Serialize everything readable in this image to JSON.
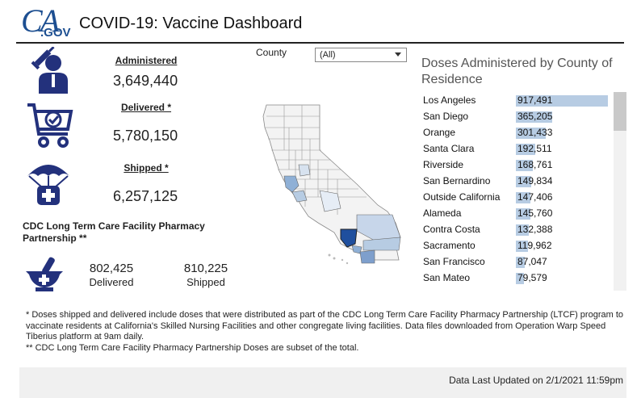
{
  "header": {
    "logo_main": "CA",
    "logo_sub": ".GOV",
    "title": "COVID-19: Vaccine Dashboard"
  },
  "metrics": {
    "administered": {
      "label": "Administered",
      "value": "3,649,440",
      "icon": "person-syringe-icon"
    },
    "delivered": {
      "label": "Delivered *",
      "value": "5,780,150",
      "icon": "cart-check-icon"
    },
    "shipped": {
      "label": "Shipped *",
      "value": "6,257,125",
      "icon": "parachute-medical-icon"
    }
  },
  "ltc": {
    "title": "CDC Long Term Care Facility Pharmacy Partnership **",
    "icon": "mortar-pestle-icon",
    "delivered_value": "802,425",
    "delivered_label": "Delivered",
    "shipped_value": "810,225",
    "shipped_label": "Shipped"
  },
  "filter": {
    "label": "County",
    "selected": "(All)"
  },
  "doses": {
    "title": "Doses Administered by County of Residence",
    "max_value": 917491,
    "rows": [
      {
        "county": "Los Angeles",
        "value": "917,491",
        "n": 917491
      },
      {
        "county": "San Diego",
        "value": "365,205",
        "n": 365205
      },
      {
        "county": "Orange",
        "value": "301,433",
        "n": 301433
      },
      {
        "county": "Santa Clara",
        "value": "192,511",
        "n": 192511
      },
      {
        "county": "Riverside",
        "value": "168,761",
        "n": 168761
      },
      {
        "county": "San Bernardino",
        "value": "149,834",
        "n": 149834
      },
      {
        "county": "Outside California",
        "value": "147,406",
        "n": 147406
      },
      {
        "county": "Alameda",
        "value": "145,760",
        "n": 145760
      },
      {
        "county": "Contra Costa",
        "value": "132,388",
        "n": 132388
      },
      {
        "county": "Sacramento",
        "value": "119,962",
        "n": 119962
      },
      {
        "county": "San Francisco",
        "value": "87,047",
        "n": 87047
      },
      {
        "county": "San Mateo",
        "value": "79,579",
        "n": 79579
      }
    ]
  },
  "notes": {
    "line1": "* Doses shipped and delivered include doses that were distributed as part of the CDC Long Term Care Facility Pharmacy Partnership (LTCF) program to vaccinate residents at California's Skilled Nursing Facilities and other congregate living facilities.  Data files downloaded from Operation Warp Speed Tiberius platform at 9am daily.",
    "line2": "** CDC Long Term Care Facility Pharmacy Partnership Doses are subset of the total."
  },
  "footer": {
    "updated": "Data Last Updated on 2/1/2021 11:59pm"
  },
  "colors": {
    "brand": "#1d4f91",
    "icon_navy": "#23317c",
    "bar": "#b7cce3",
    "map_high": "#1f4f9e",
    "map_mid": "#8fb0d6",
    "map_low": "#d7e2ef",
    "map_base": "#f3f3f3"
  }
}
